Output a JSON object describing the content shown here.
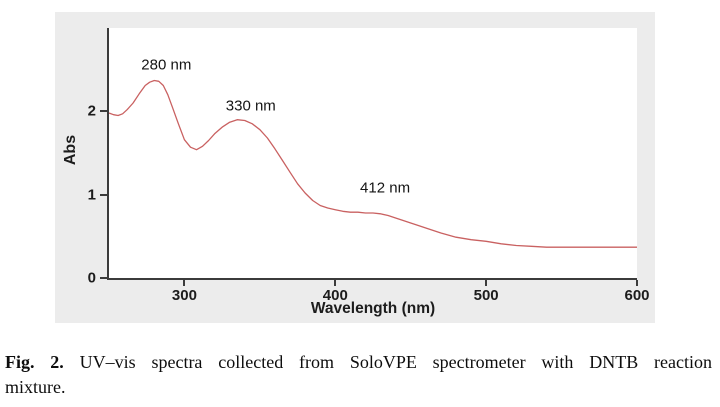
{
  "figure": {
    "caption": {
      "label": "Fig. 2.",
      "line1": "UV–vis spectra collected from SoloVPE spectrometer with DNTB reaction",
      "line2": "mixture."
    }
  },
  "chart_data": {
    "type": "line",
    "title": "",
    "xlabel": "Wavelength (nm)",
    "ylabel": "Abs",
    "xlim": [
      250,
      600
    ],
    "ylim": [
      0,
      3
    ],
    "x_ticks": [
      300,
      400,
      500,
      600
    ],
    "y_ticks": [
      0,
      1,
      2
    ],
    "grid": false,
    "legend": "none",
    "colors": {
      "line": "#c96161",
      "axis": "#3b3b3b",
      "panel_bg": "#ececec",
      "plot_bg": "#ffffff"
    },
    "annotations": [
      {
        "label": "280 nm",
        "x": 288,
        "y": 2.56
      },
      {
        "label": "330 nm",
        "x": 344,
        "y": 2.06
      },
      {
        "label": "412 nm",
        "x": 433,
        "y": 1.08
      }
    ],
    "series": [
      {
        "name": "DNTB reaction mixture",
        "x": [
          250,
          253,
          256,
          259,
          262,
          266,
          270,
          274,
          277,
          280,
          283,
          286,
          289,
          292,
          296,
          300,
          304,
          308,
          312,
          316,
          320,
          325,
          330,
          335,
          340,
          345,
          350,
          355,
          360,
          365,
          370,
          375,
          380,
          385,
          390,
          395,
          400,
          405,
          410,
          415,
          420,
          425,
          430,
          435,
          440,
          445,
          450,
          455,
          460,
          470,
          480,
          490,
          500,
          510,
          520,
          530,
          540,
          555,
          570,
          585,
          600
        ],
        "y": [
          1.98,
          1.96,
          1.95,
          1.97,
          2.02,
          2.1,
          2.21,
          2.31,
          2.35,
          2.37,
          2.36,
          2.31,
          2.2,
          2.05,
          1.85,
          1.66,
          1.57,
          1.54,
          1.58,
          1.65,
          1.73,
          1.81,
          1.87,
          1.9,
          1.89,
          1.85,
          1.78,
          1.68,
          1.55,
          1.41,
          1.27,
          1.13,
          1.02,
          0.93,
          0.87,
          0.84,
          0.82,
          0.8,
          0.79,
          0.79,
          0.78,
          0.78,
          0.77,
          0.75,
          0.72,
          0.69,
          0.66,
          0.63,
          0.6,
          0.54,
          0.49,
          0.46,
          0.44,
          0.41,
          0.39,
          0.38,
          0.37,
          0.37,
          0.37,
          0.37,
          0.37
        ]
      }
    ]
  }
}
